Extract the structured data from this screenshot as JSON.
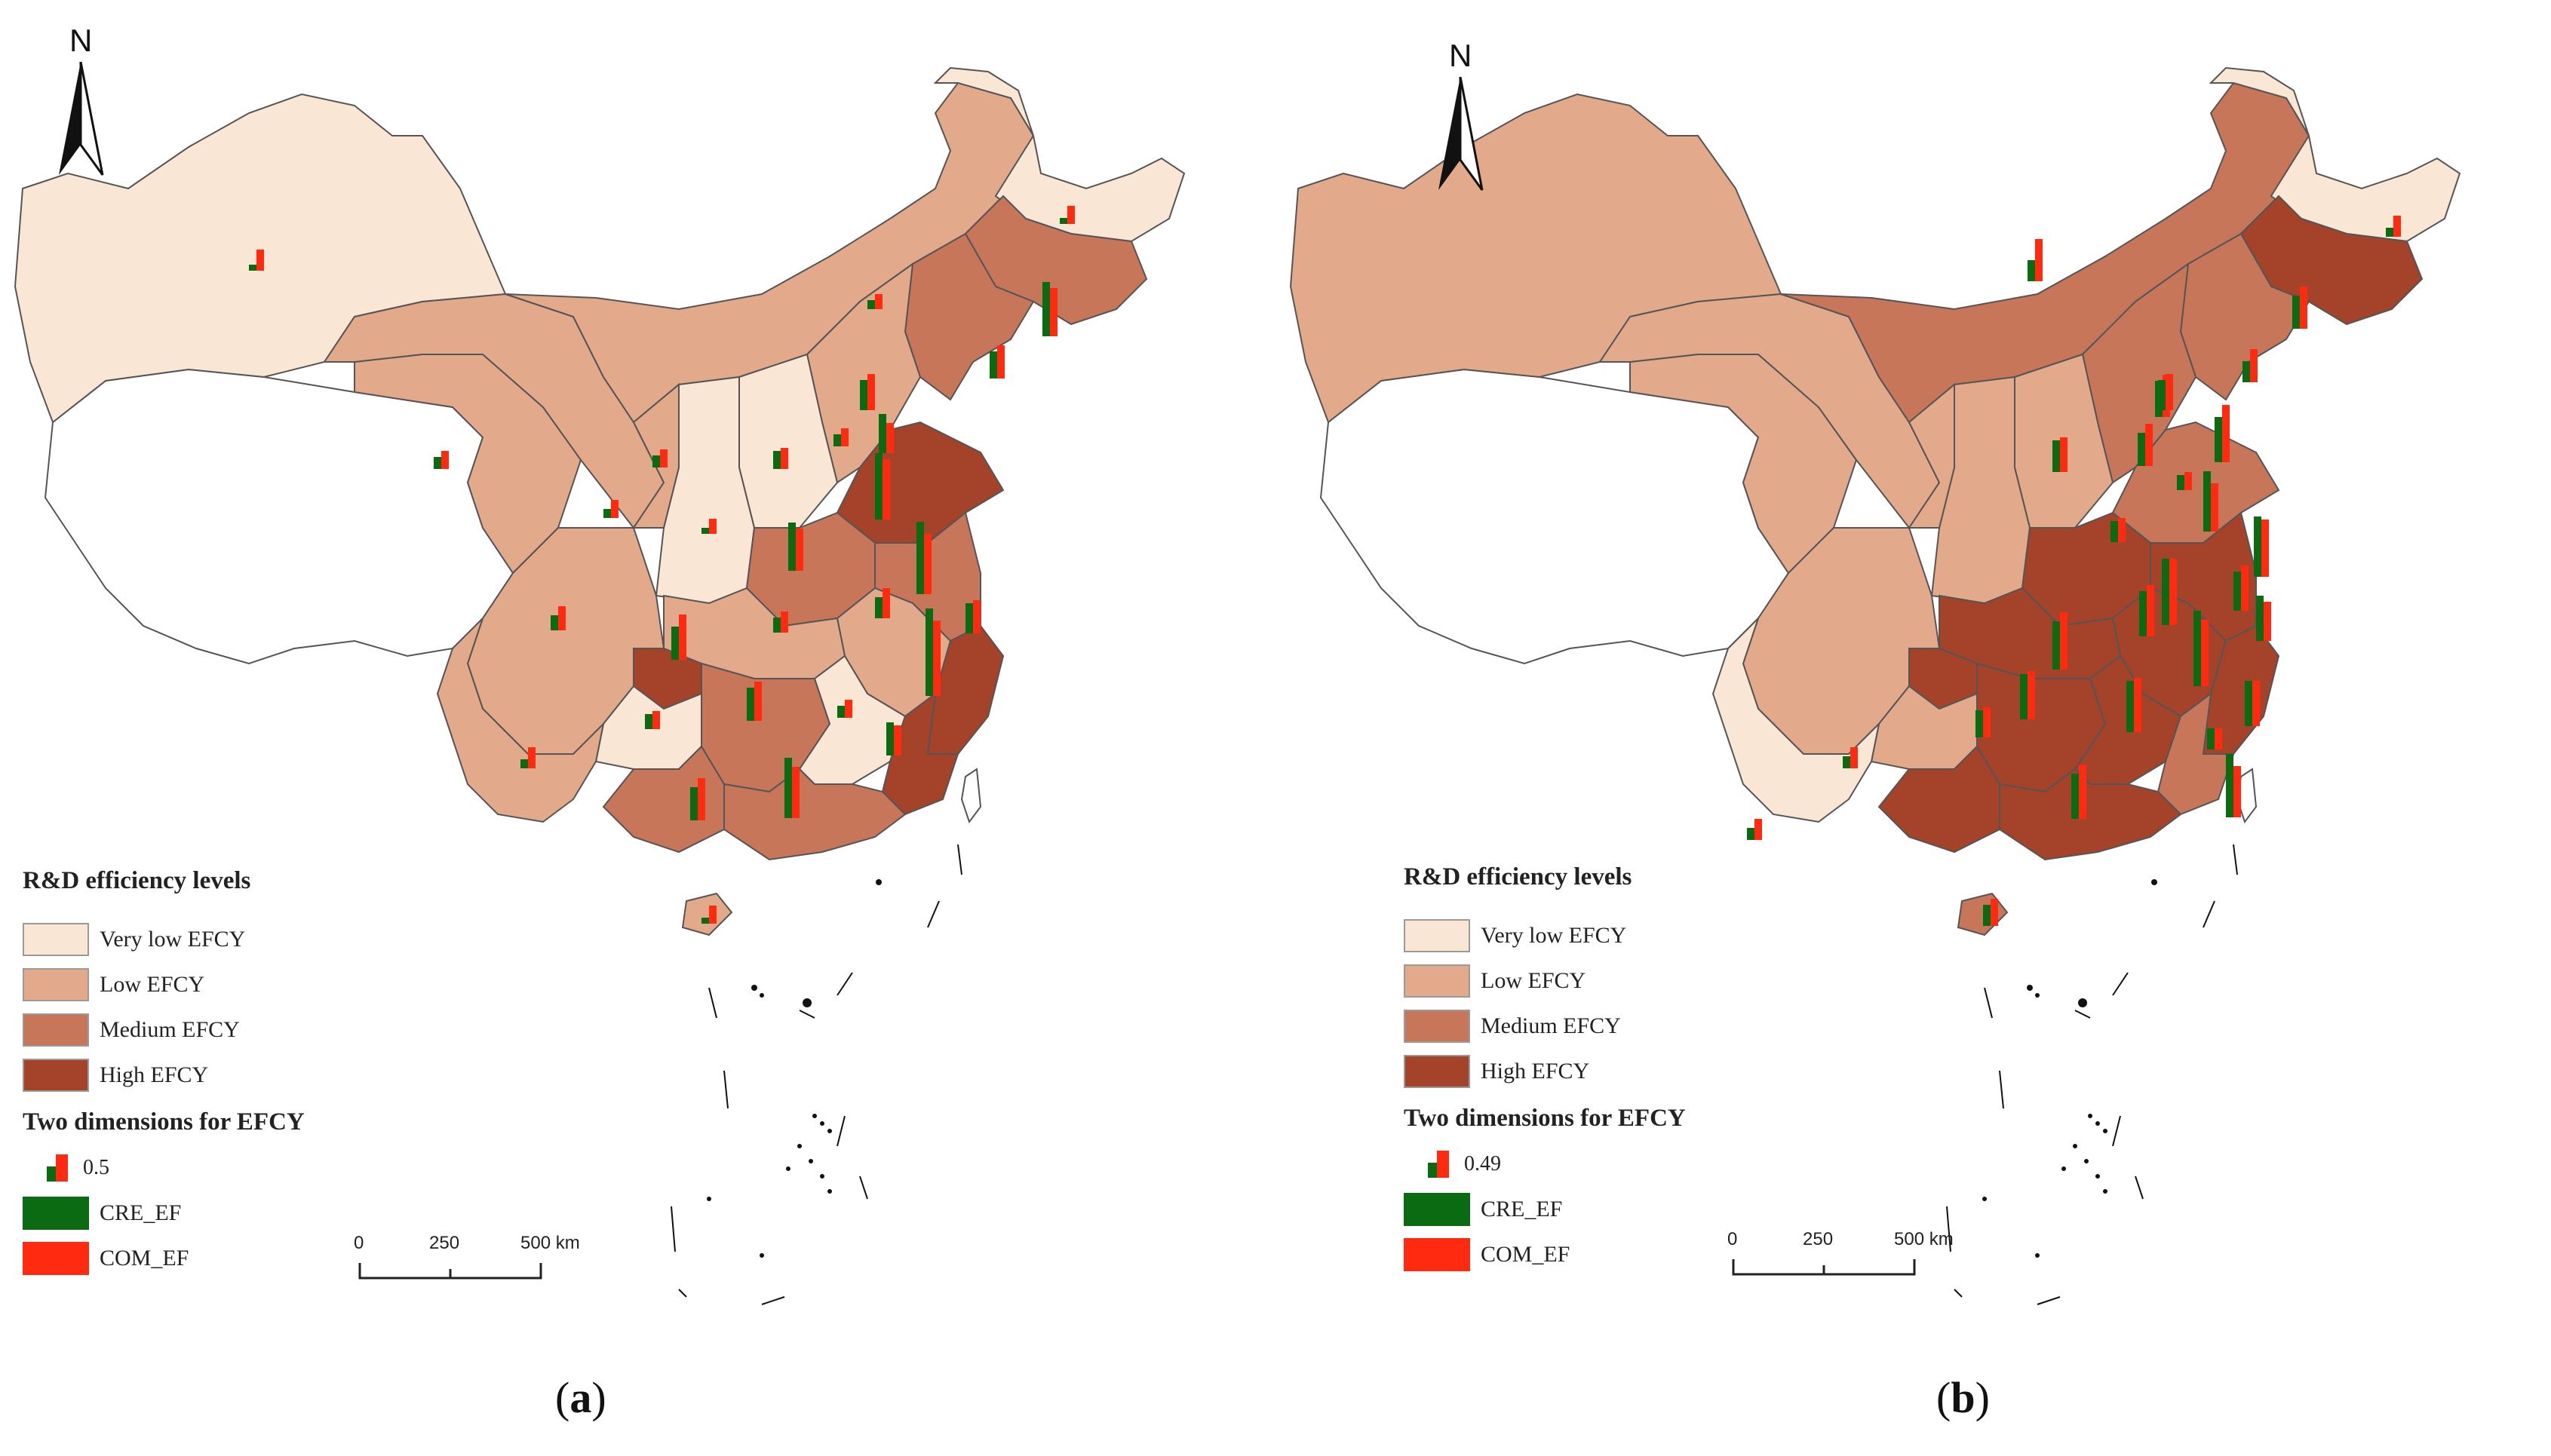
{
  "panels": [
    {
      "id": "a",
      "caption_letter": "a",
      "north_label": "N",
      "legend": {
        "title": "R&D efficiency levels",
        "levels": [
          {
            "label": "Very low EFCY",
            "color": "#f9e6d5"
          },
          {
            "label": "Low EFCY",
            "color": "#e3a98b"
          },
          {
            "label": "Medium EFCY",
            "color": "#c8765a"
          },
          {
            "label": "High EFCY",
            "color": "#a4432a"
          }
        ],
        "dimensions_title": "Two dimensions for EFCY",
        "size_reference": "0.5",
        "series": [
          {
            "label": "CRE_EF",
            "color": "#0a6b12"
          },
          {
            "label": "COM_EF",
            "color": "#ff2a10"
          }
        ]
      },
      "scale": {
        "ticks": [
          "0",
          "250",
          "500 km"
        ]
      }
    },
    {
      "id": "b",
      "caption_letter": "b",
      "north_label": "N",
      "legend": {
        "title": "R&D efficiency levels",
        "levels": [
          {
            "label": "Very low EFCY",
            "color": "#f9e6d5"
          },
          {
            "label": "Low EFCY",
            "color": "#e3a98b"
          },
          {
            "label": "Medium EFCY",
            "color": "#c8765a"
          },
          {
            "label": "High EFCY",
            "color": "#a4432a"
          }
        ],
        "dimensions_title": "Two dimensions for EFCY",
        "size_reference": "0.49",
        "series": [
          {
            "label": "CRE_EF",
            "color": "#0a6b12"
          },
          {
            "label": "COM_EF",
            "color": "#ff2a10"
          }
        ]
      },
      "scale": {
        "ticks": [
          "0",
          "250",
          "500 km"
        ]
      }
    }
  ]
}
